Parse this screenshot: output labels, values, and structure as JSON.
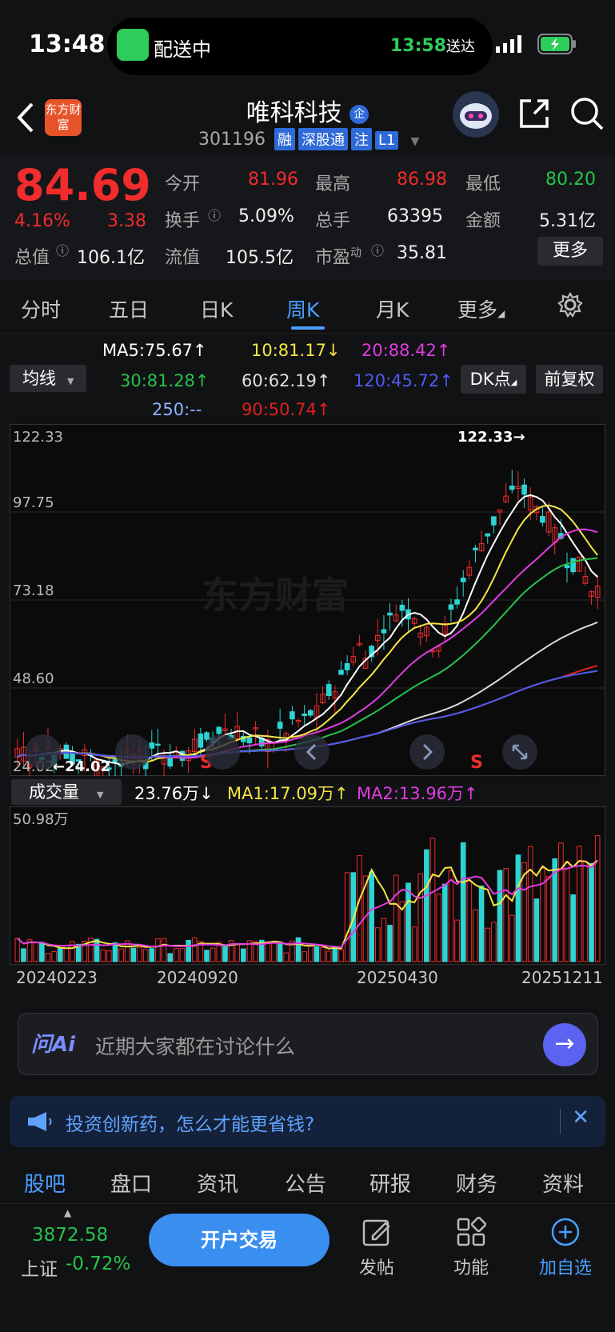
{
  "status": {
    "time": "13:48",
    "island_label": "配送中",
    "eta_time": "13:58",
    "eta_suffix": "送达"
  },
  "header": {
    "logo_text": "东方财富",
    "stock_name": "唯科科技",
    "stock_badge": "企",
    "stock_code": "301196",
    "tags": [
      "融",
      "深股通",
      "注",
      "L1"
    ]
  },
  "quote": {
    "price": "84.69",
    "change_pct": "4.16%",
    "change": "3.38",
    "open_label": "今开",
    "open": "81.96",
    "high_label": "最高",
    "high": "86.98",
    "low_label": "最低",
    "low": "80.20",
    "turnover_label": "换手",
    "turnover": "5.09%",
    "volume_label": "总手",
    "volume": "63395",
    "amount_label": "金额",
    "amount": "5.31亿",
    "mktcap_label": "总值",
    "mktcap": "106.1亿",
    "float_label": "流值",
    "float": "105.5亿",
    "pe_label": "市盈",
    "pe_sup": "动",
    "pe": "35.81",
    "more": "更多"
  },
  "tabs": [
    "分时",
    "五日",
    "日K",
    "周K",
    "月K",
    "更多"
  ],
  "ma_legend": {
    "ma5": "MA5:75.67",
    "ma10": "10:81.17",
    "ma20": "20:88.42",
    "ma30": "30:81.28",
    "ma60": "60:62.19",
    "ma120": "120:45.72",
    "ma250": "250:--",
    "ma90": "90:50.74",
    "selector": "均线",
    "dk": "DK点",
    "adjust": "前复权"
  },
  "kchart": {
    "y_labels": [
      "122.33",
      "97.75",
      "73.18",
      "48.60",
      "24.02"
    ],
    "max_label": "122.33",
    "min_label": "24.02",
    "s_marks": [
      "S",
      "S"
    ],
    "watermark": "东方财富"
  },
  "volume": {
    "selector": "成交量",
    "value": "23.76万",
    "ma1": "MA1:17.09万",
    "ma2": "MA2:13.96万",
    "y_max": "50.98万"
  },
  "dates": [
    "20240223",
    "20240920",
    "20250430",
    "20251211"
  ],
  "ai": {
    "logo": "问Ai",
    "placeholder": "近期大家都在讨论什么"
  },
  "ad": {
    "text": "投资创新药，怎么才能更省钱?"
  },
  "nav_tabs": [
    "股吧",
    "盘口",
    "资讯",
    "公告",
    "研报",
    "财务",
    "资料"
  ],
  "footer": {
    "index_value": "3872.58",
    "index_name": "上证",
    "index_change": "-0.72%",
    "open_account": "开户交易",
    "post": "发帖",
    "func": "功能",
    "add_watch": "加自选"
  },
  "colors": {
    "up": "#f02c2c",
    "down": "#2dd4d4",
    "accent": "#4a9eff",
    "ma5": "#ffffff",
    "ma10": "#f5e642",
    "ma20": "#e13ce0",
    "ma30": "#27c24c",
    "ma60": "#d9d9d9",
    "ma120": "#4d5cf0",
    "ma90": "#e02020"
  }
}
